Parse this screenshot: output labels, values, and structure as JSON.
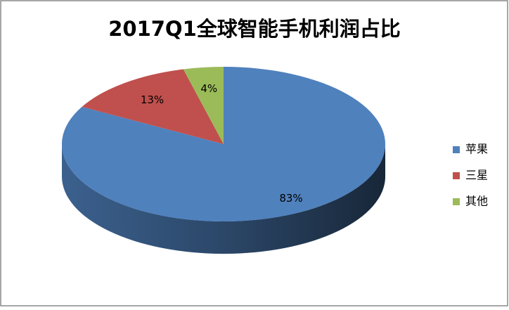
{
  "chart_data": {
    "type": "pie",
    "title": "2017Q1全球智能手机利润占比",
    "categories": [
      "苹果",
      "三星",
      "其他"
    ],
    "values": [
      83,
      13,
      4
    ],
    "value_labels": [
      "83%",
      "13%",
      "4%"
    ],
    "colors": [
      "#4f81bd",
      "#c0504d",
      "#9bbb59"
    ],
    "legend": "right"
  }
}
